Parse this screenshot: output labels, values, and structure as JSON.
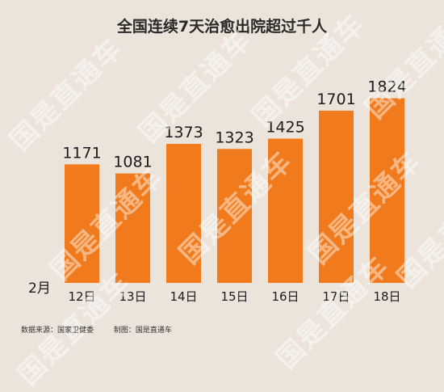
{
  "colors": {
    "bar": "#f07a1c",
    "text": "#1a1a1a",
    "background": "#ece4da"
  },
  "month_label": "2月",
  "footer": {
    "source": "数据来源：国家卫健委",
    "made_by": "制图：国是直通车"
  },
  "watermark_text": "国是直通车",
  "chart_data": {
    "type": "bar",
    "title": "全国连续7天治愈出院超过千人",
    "categories": [
      "12日",
      "13日",
      "14日",
      "15日",
      "16日",
      "17日",
      "18日"
    ],
    "values": [
      1171,
      1081,
      1373,
      1323,
      1425,
      1701,
      1824
    ],
    "ylim": [
      0,
      1900
    ],
    "xlabel": "",
    "ylabel": "",
    "grid": false,
    "data_labels": true
  }
}
